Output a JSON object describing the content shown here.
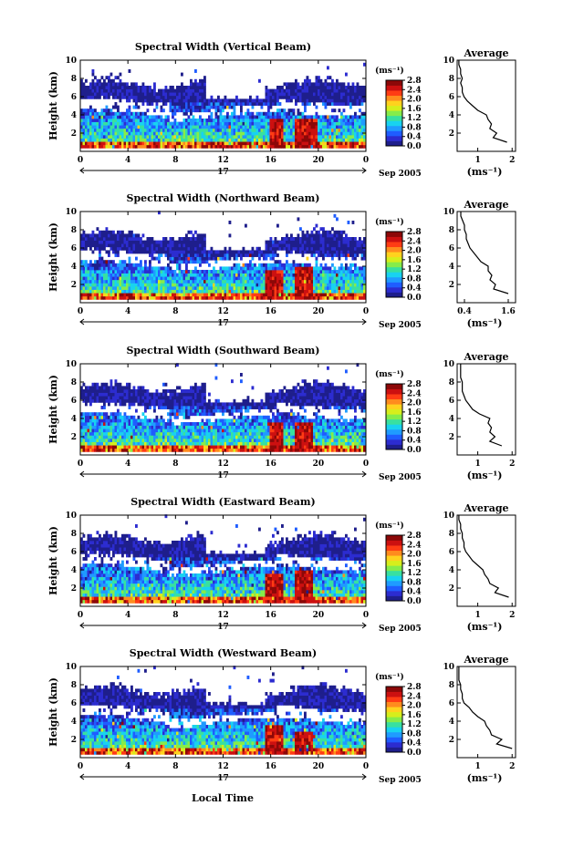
{
  "panels": [
    {
      "title": "Spectral Width (Vertical Beam)",
      "avg_title": "Average",
      "avg_xticks": [
        "1",
        "2"
      ],
      "avg_xlim": [
        0.4,
        2.1
      ],
      "peaks": [
        [
          16.0,
          17.0,
          3.5
        ],
        [
          18.0,
          20.0,
          3.6
        ]
      ]
    },
    {
      "title": "Spectral Width (Northward Beam)",
      "avg_title": "Average",
      "avg_xticks": [
        "0.4",
        "1.6"
      ],
      "avg_xlim": [
        0.2,
        1.8
      ],
      "peaks": [
        [
          15.5,
          17.0,
          3.5
        ],
        [
          18.0,
          19.5,
          3.8
        ]
      ]
    },
    {
      "title": "Spectral Width (Southward Beam)",
      "avg_title": "Average",
      "avg_xticks": [
        "1",
        "2"
      ],
      "avg_xlim": [
        0.4,
        2.1
      ],
      "peaks": [
        [
          16.0,
          17.0,
          3.5
        ],
        [
          18.0,
          19.5,
          3.4
        ]
      ]
    },
    {
      "title": "Spectral Width (Eastward Beam)",
      "avg_title": "Average",
      "avg_xticks": [
        "1",
        "2"
      ],
      "avg_xlim": [
        0.4,
        2.1
      ],
      "peaks": [
        [
          15.5,
          17.0,
          3.6
        ],
        [
          18.0,
          19.5,
          3.8
        ]
      ]
    },
    {
      "title": "Spectral Width (Westward Beam)",
      "avg_title": "Average",
      "avg_xticks": [
        "1",
        "2"
      ],
      "avg_xlim": [
        0.4,
        2.1
      ],
      "peaks": [
        [
          15.5,
          17.0,
          3.4
        ],
        [
          18.0,
          19.5,
          3.0
        ]
      ]
    }
  ],
  "colorbar": {
    "unit_label": "(ms⁻¹)",
    "ticks": [
      "2.8",
      "2.4",
      "2.0",
      "1.6",
      "1.2",
      "0.8",
      "0.4",
      "0.0"
    ],
    "range": [
      0.0,
      2.8
    ],
    "colors": [
      "#1e1e8c",
      "#2c2cd0",
      "#1f5dff",
      "#1f9bff",
      "#18d2f0",
      "#38e0a0",
      "#86ec4a",
      "#d6ee1c",
      "#ffd21e",
      "#ff8c1e",
      "#ff3c14",
      "#cc1010",
      "#8c0808"
    ]
  },
  "axes": {
    "ylabel": "Height (km)",
    "avg_xlabel": "(ms⁻¹)",
    "yticks": [
      "2",
      "4",
      "6",
      "8",
      "10"
    ],
    "ylim": [
      0,
      10
    ],
    "xticks": [
      "0",
      "4",
      "8",
      "12",
      "16",
      "20",
      "0"
    ],
    "xlim_hours": [
      0,
      24
    ],
    "day_label": "17",
    "date_label": "Sep 2005",
    "xlabel": "Local Time"
  },
  "chart_data": {
    "type": "heatmap",
    "quantity": "Spectral Width",
    "unit": "ms⁻¹",
    "date": "17 Sep 2005",
    "x_axis": "Local Time (h)",
    "y_axis": "Height (km)",
    "xlim": [
      0,
      24
    ],
    "ylim": [
      0,
      10
    ],
    "color_range": [
      0.0,
      2.8
    ],
    "features": [
      "Blue (low width, about 0.0-0.4 ms⁻¹) echoes between about 4.5 and 8 km most of the day",
      "Gap in echoes from about 10 to 16 LT above 6 km",
      "Red maxima (>2.4 ms⁻¹) near 15.5-17 LT and 18-20 LT below about 4 km",
      "Mixed 0.8-2.0 ms⁻¹ values below 4 km"
    ],
    "average_profiles": [
      {
        "beam": "Vertical",
        "height_km": [
          1,
          1.5,
          2,
          2.5,
          3,
          3.5,
          4,
          4.5,
          5,
          5.5,
          6,
          6.5,
          7,
          7.5,
          8,
          8.5,
          9,
          9.5,
          10
        ],
        "width_ms": [
          1.85,
          1.45,
          1.55,
          1.35,
          1.4,
          1.3,
          1.25,
          1.0,
          0.85,
          0.7,
          0.6,
          0.55,
          0.55,
          0.5,
          0.55,
          0.5,
          0.5,
          0.45,
          0.45
        ]
      },
      {
        "beam": "Northward",
        "height_km": [
          1,
          1.5,
          2,
          2.5,
          3,
          3.5,
          4,
          4.5,
          5,
          5.5,
          6,
          6.5,
          7,
          7.5,
          8,
          8.5,
          9,
          9.5,
          10
        ],
        "width_ms": [
          1.6,
          1.2,
          1.25,
          1.1,
          1.15,
          1.05,
          1.05,
          0.85,
          0.75,
          0.65,
          0.55,
          0.5,
          0.45,
          0.45,
          0.4,
          0.4,
          0.35,
          0.3,
          0.3
        ]
      },
      {
        "beam": "Southward",
        "height_km": [
          1,
          1.5,
          2,
          2.5,
          3,
          3.5,
          4,
          4.5,
          5,
          5.5,
          6,
          6.5,
          7,
          7.5,
          8,
          8.5,
          9,
          9.5,
          10
        ],
        "width_ms": [
          1.7,
          1.35,
          1.5,
          1.35,
          1.4,
          1.3,
          1.35,
          1.05,
          0.85,
          0.75,
          0.65,
          0.6,
          0.55,
          0.55,
          0.55,
          0.5,
          0.5,
          0.5,
          0.5
        ]
      },
      {
        "beam": "Eastward",
        "height_km": [
          1,
          1.5,
          2,
          2.5,
          3,
          3.5,
          4,
          4.5,
          5,
          5.5,
          6,
          6.5,
          7,
          7.5,
          8,
          8.5,
          9,
          9.5,
          10
        ],
        "width_ms": [
          1.9,
          1.5,
          1.6,
          1.35,
          1.3,
          1.2,
          1.15,
          1.0,
          0.85,
          0.75,
          0.65,
          0.6,
          0.6,
          0.55,
          0.55,
          0.5,
          0.5,
          0.45,
          0.45
        ]
      },
      {
        "beam": "Westward",
        "height_km": [
          1,
          1.5,
          2,
          2.5,
          3,
          3.5,
          4,
          4.5,
          5,
          5.5,
          6,
          6.5,
          7,
          7.5,
          8,
          8.5,
          9,
          9.5,
          10
        ],
        "width_ms": [
          2.0,
          1.55,
          1.7,
          1.4,
          1.35,
          1.25,
          1.2,
          1.0,
          0.85,
          0.75,
          0.6,
          0.55,
          0.55,
          0.5,
          0.5,
          0.45,
          0.45,
          0.45,
          0.45
        ]
      }
    ]
  }
}
